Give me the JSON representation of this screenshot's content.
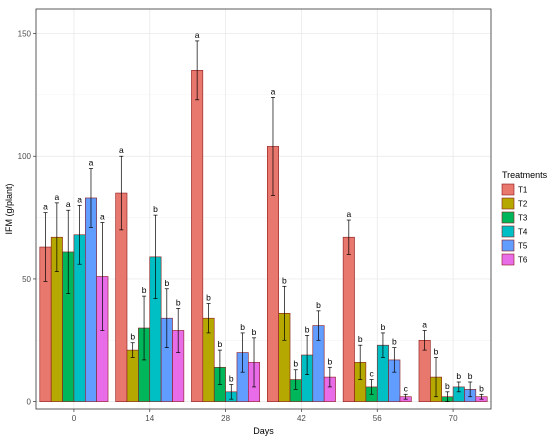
{
  "chart_data": {
    "type": "bar",
    "xlabel": "Days",
    "ylabel": "IFM (g/plant)",
    "ylim": [
      -3,
      160
    ],
    "yticks": [
      0,
      50,
      100,
      150
    ],
    "grid": true,
    "legend_title": "Treatments",
    "legend_position": "right",
    "categories": [
      "0",
      "14",
      "28",
      "42",
      "56",
      "70"
    ],
    "series": [
      {
        "name": "T1",
        "color": "#e8776e",
        "values": [
          63,
          85,
          135,
          104,
          67,
          25
        ],
        "errors": [
          14,
          15,
          12,
          20,
          7,
          4
        ],
        "labels": [
          "a",
          "a",
          "a",
          "a",
          "a",
          "a"
        ]
      },
      {
        "name": "T2",
        "color": "#b5a800",
        "values": [
          67,
          21,
          34,
          36,
          16,
          10
        ],
        "errors": [
          14,
          3,
          6,
          11,
          7,
          8
        ],
        "labels": [
          "a",
          "b",
          "b",
          "b",
          "b",
          "b"
        ]
      },
      {
        "name": "T3",
        "color": "#00b65a",
        "values": [
          61,
          30,
          14,
          9,
          6,
          2
        ],
        "errors": [
          17,
          13,
          7,
          4,
          3,
          2
        ],
        "labels": [
          "a",
          "b",
          "b",
          "b",
          "c",
          "b"
        ]
      },
      {
        "name": "T4",
        "color": "#00bfc4",
        "values": [
          68,
          59,
          4,
          19,
          23,
          6
        ],
        "errors": [
          12,
          17,
          3,
          8,
          5,
          2
        ],
        "labels": [
          "a",
          "b",
          "b",
          "b",
          "b",
          "b"
        ]
      },
      {
        "name": "T5",
        "color": "#619cff",
        "values": [
          83,
          34,
          20,
          31,
          17,
          5
        ],
        "errors": [
          12,
          12,
          8,
          6,
          5,
          3
        ],
        "labels": [
          "a",
          "b",
          "b",
          "b",
          "b",
          "b"
        ]
      },
      {
        "name": "T6",
        "color": "#e86ce8",
        "values": [
          51,
          29,
          16,
          10,
          2,
          2
        ],
        "errors": [
          22,
          9,
          10,
          4,
          1,
          1
        ],
        "labels": [
          "a",
          "b",
          "b",
          "b",
          "c",
          "b"
        ]
      }
    ]
  }
}
